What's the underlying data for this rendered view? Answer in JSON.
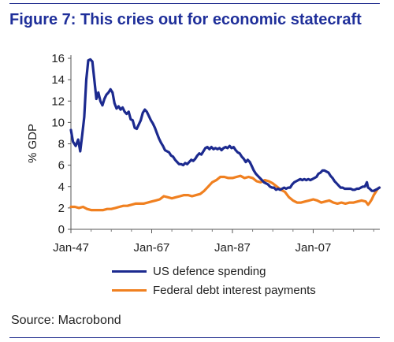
{
  "title": "Figure 7: This cries out for economic statecraft",
  "source": "Source: Macrobond",
  "chart_data": {
    "type": "line",
    "ylabel": "% GDP",
    "xlabel": "",
    "ylim": [
      0,
      16
    ],
    "yticks": [
      0,
      2,
      4,
      6,
      8,
      10,
      12,
      14,
      16
    ],
    "xrange": [
      1947.0,
      2023.5
    ],
    "xticks": [
      {
        "x": 1947,
        "label": "Jan-47"
      },
      {
        "x": 1967,
        "label": "Jan-67"
      },
      {
        "x": 1987,
        "label": "Jan-87"
      },
      {
        "x": 2007,
        "label": "Jan-07"
      }
    ],
    "legend_position": "bottom",
    "series": [
      {
        "name": "US defence spending",
        "color": "#1c2a8f",
        "points": [
          [
            1947.0,
            9.3
          ],
          [
            1947.5,
            8.2
          ],
          [
            1948.2,
            7.8
          ],
          [
            1948.8,
            8.4
          ],
          [
            1949.3,
            7.3
          ],
          [
            1949.8,
            8.8
          ],
          [
            1950.3,
            10.5
          ],
          [
            1950.8,
            14.0
          ],
          [
            1951.3,
            15.8
          ],
          [
            1951.8,
            15.9
          ],
          [
            1952.3,
            15.7
          ],
          [
            1952.8,
            14.0
          ],
          [
            1953.3,
            12.2
          ],
          [
            1953.8,
            12.8
          ],
          [
            1954.3,
            12.0
          ],
          [
            1954.8,
            11.6
          ],
          [
            1955.3,
            12.2
          ],
          [
            1955.8,
            12.6
          ],
          [
            1956.3,
            12.8
          ],
          [
            1956.8,
            13.1
          ],
          [
            1957.3,
            12.8
          ],
          [
            1957.8,
            11.8
          ],
          [
            1958.3,
            11.3
          ],
          [
            1958.8,
            11.5
          ],
          [
            1959.3,
            11.2
          ],
          [
            1959.8,
            11.4
          ],
          [
            1960.3,
            11.0
          ],
          [
            1960.8,
            10.8
          ],
          [
            1961.3,
            11.0
          ],
          [
            1961.8,
            10.3
          ],
          [
            1962.3,
            10.2
          ],
          [
            1962.8,
            9.5
          ],
          [
            1963.3,
            9.4
          ],
          [
            1963.8,
            9.8
          ],
          [
            1964.3,
            10.2
          ],
          [
            1964.8,
            10.9
          ],
          [
            1965.3,
            11.2
          ],
          [
            1965.8,
            11.0
          ],
          [
            1966.3,
            10.6
          ],
          [
            1966.8,
            10.2
          ],
          [
            1967.3,
            9.9
          ],
          [
            1967.8,
            9.5
          ],
          [
            1968.3,
            9.0
          ],
          [
            1968.8,
            8.5
          ],
          [
            1969.3,
            8.1
          ],
          [
            1969.8,
            7.8
          ],
          [
            1970.3,
            7.4
          ],
          [
            1970.8,
            7.3
          ],
          [
            1971.3,
            7.2
          ],
          [
            1971.8,
            6.9
          ],
          [
            1972.3,
            6.8
          ],
          [
            1972.8,
            6.5
          ],
          [
            1973.3,
            6.3
          ],
          [
            1973.8,
            6.1
          ],
          [
            1974.3,
            6.1
          ],
          [
            1974.8,
            6.0
          ],
          [
            1975.3,
            6.2
          ],
          [
            1975.8,
            6.1
          ],
          [
            1976.3,
            6.3
          ],
          [
            1976.8,
            6.5
          ],
          [
            1977.3,
            6.4
          ],
          [
            1977.8,
            6.6
          ],
          [
            1978.3,
            6.9
          ],
          [
            1978.8,
            7.1
          ],
          [
            1979.3,
            7.0
          ],
          [
            1979.8,
            7.3
          ],
          [
            1980.3,
            7.6
          ],
          [
            1980.8,
            7.7
          ],
          [
            1981.3,
            7.5
          ],
          [
            1981.8,
            7.7
          ],
          [
            1982.3,
            7.5
          ],
          [
            1982.8,
            7.6
          ],
          [
            1983.3,
            7.5
          ],
          [
            1983.8,
            7.6
          ],
          [
            1984.3,
            7.4
          ],
          [
            1984.8,
            7.6
          ],
          [
            1985.3,
            7.7
          ],
          [
            1985.8,
            7.6
          ],
          [
            1986.3,
            7.8
          ],
          [
            1986.8,
            7.6
          ],
          [
            1987.3,
            7.7
          ],
          [
            1987.8,
            7.4
          ],
          [
            1988.3,
            7.2
          ],
          [
            1988.8,
            7.1
          ],
          [
            1989.3,
            6.8
          ],
          [
            1989.8,
            6.6
          ],
          [
            1990.3,
            6.3
          ],
          [
            1990.8,
            6.5
          ],
          [
            1991.3,
            6.3
          ],
          [
            1991.8,
            5.9
          ],
          [
            1992.3,
            5.5
          ],
          [
            1992.8,
            5.2
          ],
          [
            1993.3,
            5.0
          ],
          [
            1993.8,
            4.8
          ],
          [
            1994.3,
            4.6
          ],
          [
            1994.8,
            4.4
          ],
          [
            1995.3,
            4.3
          ],
          [
            1995.8,
            4.2
          ],
          [
            1996.3,
            4.0
          ],
          [
            1996.8,
            3.9
          ],
          [
            1997.3,
            3.9
          ],
          [
            1997.8,
            3.7
          ],
          [
            1998.3,
            3.8
          ],
          [
            1998.8,
            3.7
          ],
          [
            1999.3,
            3.8
          ],
          [
            1999.8,
            3.9
          ],
          [
            2000.3,
            3.8
          ],
          [
            2000.8,
            3.9
          ],
          [
            2001.3,
            3.9
          ],
          [
            2001.8,
            4.2
          ],
          [
            2002.3,
            4.4
          ],
          [
            2002.8,
            4.5
          ],
          [
            2003.3,
            4.6
          ],
          [
            2003.8,
            4.7
          ],
          [
            2004.3,
            4.6
          ],
          [
            2004.8,
            4.7
          ],
          [
            2005.3,
            4.6
          ],
          [
            2005.8,
            4.7
          ],
          [
            2006.3,
            4.6
          ],
          [
            2006.8,
            4.7
          ],
          [
            2007.3,
            4.8
          ],
          [
            2007.8,
            4.9
          ],
          [
            2008.3,
            5.2
          ],
          [
            2008.8,
            5.3
          ],
          [
            2009.3,
            5.5
          ],
          [
            2009.8,
            5.5
          ],
          [
            2010.3,
            5.4
          ],
          [
            2010.8,
            5.3
          ],
          [
            2011.3,
            5.0
          ],
          [
            2011.8,
            4.8
          ],
          [
            2012.3,
            4.5
          ],
          [
            2012.8,
            4.3
          ],
          [
            2013.3,
            4.1
          ],
          [
            2013.8,
            3.9
          ],
          [
            2014.3,
            3.9
          ],
          [
            2014.8,
            3.8
          ],
          [
            2015.3,
            3.8
          ],
          [
            2015.8,
            3.8
          ],
          [
            2016.3,
            3.8
          ],
          [
            2016.8,
            3.7
          ],
          [
            2017.3,
            3.7
          ],
          [
            2017.8,
            3.8
          ],
          [
            2018.3,
            3.8
          ],
          [
            2018.8,
            3.9
          ],
          [
            2019.3,
            4.0
          ],
          [
            2019.8,
            4.0
          ],
          [
            2020.3,
            4.4
          ],
          [
            2020.6,
            3.9
          ],
          [
            2021.0,
            3.8
          ],
          [
            2021.5,
            3.6
          ],
          [
            2022.0,
            3.6
          ],
          [
            2022.5,
            3.7
          ],
          [
            2023.0,
            3.8
          ],
          [
            2023.4,
            3.9
          ]
        ]
      },
      {
        "name": "Federal debt interest payments",
        "color": "#f08020",
        "points": [
          [
            1947.0,
            2.1
          ],
          [
            1948.0,
            2.1
          ],
          [
            1949.0,
            2.0
          ],
          [
            1950.0,
            2.1
          ],
          [
            1951.0,
            1.9
          ],
          [
            1952.0,
            1.8
          ],
          [
            1953.0,
            1.8
          ],
          [
            1954.0,
            1.8
          ],
          [
            1955.0,
            1.8
          ],
          [
            1956.0,
            1.9
          ],
          [
            1957.0,
            1.9
          ],
          [
            1958.0,
            2.0
          ],
          [
            1959.0,
            2.1
          ],
          [
            1960.0,
            2.2
          ],
          [
            1961.0,
            2.2
          ],
          [
            1962.0,
            2.3
          ],
          [
            1963.0,
            2.4
          ],
          [
            1964.0,
            2.4
          ],
          [
            1965.0,
            2.4
          ],
          [
            1966.0,
            2.5
          ],
          [
            1967.0,
            2.6
          ],
          [
            1968.0,
            2.7
          ],
          [
            1969.0,
            2.8
          ],
          [
            1970.0,
            3.1
          ],
          [
            1971.0,
            3.0
          ],
          [
            1972.0,
            2.9
          ],
          [
            1973.0,
            3.0
          ],
          [
            1974.0,
            3.1
          ],
          [
            1975.0,
            3.2
          ],
          [
            1976.0,
            3.2
          ],
          [
            1977.0,
            3.1
          ],
          [
            1978.0,
            3.2
          ],
          [
            1979.0,
            3.3
          ],
          [
            1980.0,
            3.6
          ],
          [
            1981.0,
            4.0
          ],
          [
            1982.0,
            4.4
          ],
          [
            1983.0,
            4.6
          ],
          [
            1984.0,
            4.9
          ],
          [
            1985.0,
            4.9
          ],
          [
            1986.0,
            4.8
          ],
          [
            1987.0,
            4.8
          ],
          [
            1988.0,
            4.9
          ],
          [
            1989.0,
            5.0
          ],
          [
            1990.0,
            4.8
          ],
          [
            1991.0,
            4.9
          ],
          [
            1992.0,
            4.8
          ],
          [
            1993.0,
            4.5
          ],
          [
            1994.0,
            4.4
          ],
          [
            1995.0,
            4.6
          ],
          [
            1996.0,
            4.5
          ],
          [
            1997.0,
            4.3
          ],
          [
            1998.0,
            4.0
          ],
          [
            1999.0,
            3.7
          ],
          [
            2000.0,
            3.5
          ],
          [
            2001.0,
            3.0
          ],
          [
            2002.0,
            2.7
          ],
          [
            2003.0,
            2.5
          ],
          [
            2004.0,
            2.5
          ],
          [
            2005.0,
            2.6
          ],
          [
            2006.0,
            2.7
          ],
          [
            2007.0,
            2.8
          ],
          [
            2008.0,
            2.7
          ],
          [
            2009.0,
            2.5
          ],
          [
            2010.0,
            2.6
          ],
          [
            2011.0,
            2.7
          ],
          [
            2012.0,
            2.5
          ],
          [
            2013.0,
            2.4
          ],
          [
            2014.0,
            2.5
          ],
          [
            2015.0,
            2.4
          ],
          [
            2016.0,
            2.5
          ],
          [
            2017.0,
            2.5
          ],
          [
            2018.0,
            2.6
          ],
          [
            2019.0,
            2.7
          ],
          [
            2020.0,
            2.6
          ],
          [
            2020.6,
            2.3
          ],
          [
            2021.0,
            2.5
          ],
          [
            2021.5,
            2.8
          ],
          [
            2022.0,
            3.2
          ],
          [
            2022.5,
            3.5
          ],
          [
            2023.0,
            3.8
          ],
          [
            2023.4,
            3.9
          ]
        ]
      }
    ]
  }
}
